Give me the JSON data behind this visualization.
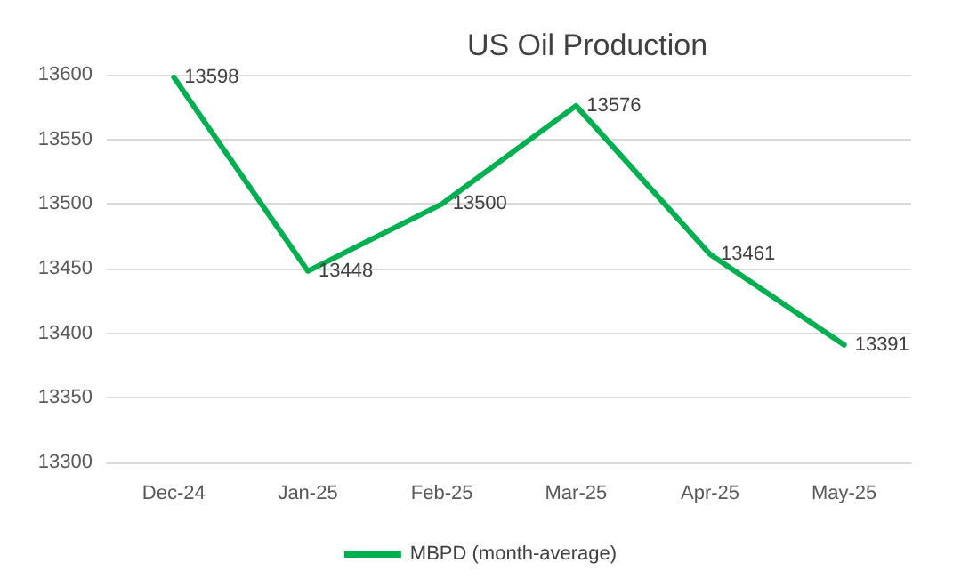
{
  "chart_data": {
    "type": "line",
    "title": "US Oil Production",
    "categories": [
      "Dec-24",
      "Jan-25",
      "Feb-25",
      "Mar-25",
      "Apr-25",
      "May-25"
    ],
    "series": [
      {
        "name": "MBPD (month-average)",
        "color": "#00b050",
        "values": [
          13598,
          13448,
          13500,
          13576,
          13461,
          13391
        ]
      }
    ],
    "ylim": [
      13300,
      13600
    ],
    "yticks": [
      13300,
      13350,
      13400,
      13450,
      13500,
      13550,
      13600
    ],
    "grid": "y",
    "legend": "bottom",
    "data_labels": true,
    "marker": "none",
    "line_style": "solid"
  }
}
